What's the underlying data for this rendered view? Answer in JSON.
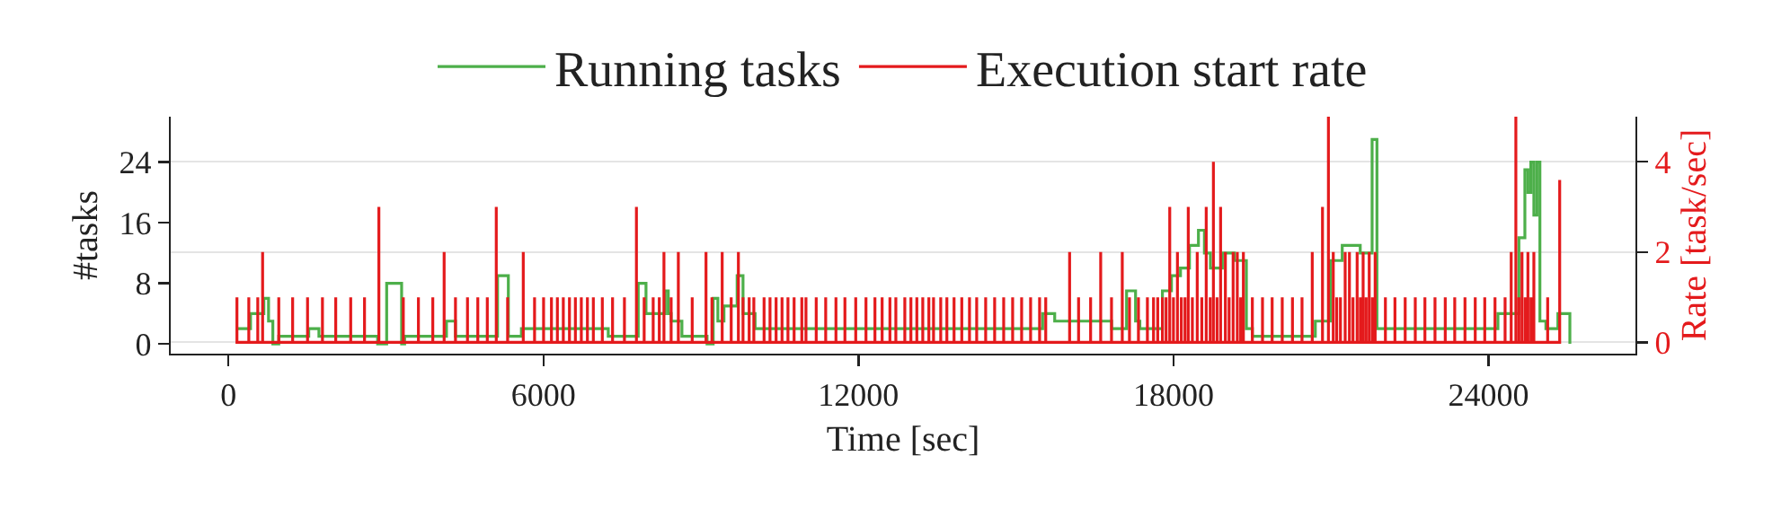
{
  "chart_data": {
    "type": "line",
    "xlabel": "Time [sec]",
    "ylabel": "#tasks",
    "y2label": "Rate [task/sec]",
    "xlim": [
      -1100,
      26800
    ],
    "xticks": [
      0,
      6000,
      12000,
      18000,
      24000
    ],
    "ylim": [
      -1.3,
      30
    ],
    "yticks": [
      0,
      8,
      16,
      24
    ],
    "y2lim": [
      -0.25,
      5.0
    ],
    "y2ticks": [
      0,
      2,
      4
    ],
    "grid": "y2",
    "legend": "top",
    "marker": "none",
    "line_style": "solid",
    "series": [
      {
        "name": "Running tasks",
        "type": "step",
        "color": "#4daf4a",
        "x": [
          160,
          420,
          674,
          763,
          845,
          958,
          1529,
          1723,
          2841,
          3013,
          3298,
          3355,
          4152,
          4324,
          5125,
          5331,
          5580,
          7234,
          7805,
          7953,
          8319,
          8377,
          8432,
          8637,
          9116,
          9233,
          9322,
          9438,
          9689,
          9801,
          10031,
          15508,
          15738,
          16822,
          17107,
          17278,
          17360,
          17790,
          17962,
          18134,
          18305,
          18476,
          18590,
          18704,
          18932,
          19161,
          19389,
          19503,
          20702,
          20987,
          21215,
          21558,
          21784,
          21876,
          24180,
          24580,
          24694,
          24752,
          24808,
          24865,
          24923,
          24980,
          25094,
          25323,
          25551
        ],
        "values": [
          2,
          4,
          6,
          3,
          0,
          1,
          2,
          1,
          0,
          8,
          0,
          1,
          3,
          1,
          9,
          1,
          2,
          1,
          8,
          4,
          7,
          4,
          3,
          1,
          0,
          6,
          3,
          5,
          9,
          4,
          2,
          4,
          3,
          2,
          7,
          3,
          2,
          7,
          9,
          10,
          13,
          15,
          12,
          10,
          12,
          11,
          2,
          1,
          3,
          11,
          13,
          12,
          27,
          2,
          4,
          14,
          23,
          20,
          24,
          17,
          24,
          3,
          2,
          4,
          0
        ]
      },
      {
        "name": "Execution start rate",
        "color": "#e41a1c",
        "axis": "y2",
        "x": [
          161,
          161,
          161,
          387,
          387,
          387,
          558,
          558,
          558,
          650,
          650,
          650,
          958,
          958,
          958,
          1222,
          1222,
          1222,
          1506,
          1506,
          1506,
          1790,
          1790,
          1790,
          2043,
          2043,
          2043,
          2328,
          2328,
          2328,
          2591,
          2591,
          2591,
          2865,
          2865,
          2865,
          3330,
          3330,
          3330,
          3618,
          3618,
          3618,
          3892,
          3892,
          3892,
          4108,
          4108,
          4108,
          4324,
          4324,
          4324,
          4553,
          4553,
          4553,
          4749,
          4749,
          4749,
          4930,
          4930,
          4930,
          5101,
          5101,
          5101,
          5317,
          5317,
          5317,
          5615,
          5615,
          5615,
          5830,
          5830,
          5830,
          6002,
          6002,
          6002,
          6152,
          6152,
          6152,
          6265,
          6265,
          6265,
          6378,
          6378,
          6378,
          6495,
          6495,
          6495,
          6608,
          6608,
          6608,
          6721,
          6721,
          6721,
          6837,
          6837,
          6837,
          6950,
          6950,
          6950,
          7121,
          7121,
          7121,
          7316,
          7316,
          7316,
          7542,
          7542,
          7542,
          7771,
          7771,
          7771,
          7918,
          7918,
          7918,
          8090,
          8090,
          8090,
          8206,
          8206,
          8206,
          8295,
          8295,
          8295,
          8432,
          8432,
          8432,
          8569,
          8569,
          8569,
          8833,
          8833,
          8833,
          9096,
          9096,
          9096,
          9209,
          9209,
          9209,
          9404,
          9404,
          9404,
          9576,
          9576,
          9576,
          9713,
          9713,
          9713,
          9801,
          9801,
          9801,
          9918,
          9918,
          9918,
          10007,
          10007,
          10007,
          10202,
          10202,
          10202,
          10315,
          10315,
          10315,
          10431,
          10431,
          10431,
          10544,
          10544,
          10544,
          10657,
          10657,
          10657,
          10774,
          10774,
          10774,
          10921,
          10921,
          10921,
          11000,
          11000,
          11000,
          11195,
          11195,
          11195,
          11376,
          11376,
          11376,
          11571,
          11571,
          11571,
          11742,
          11742,
          11742,
          11948,
          11948,
          11948,
          12143,
          12143,
          12143,
          12314,
          12314,
          12314,
          12451,
          12451,
          12451,
          12599,
          12599,
          12599,
          12712,
          12712,
          12712,
          12883,
          12883,
          12883,
          12999,
          12999,
          12999,
          13112,
          13112,
          13112,
          13225,
          13225,
          13225,
          13341,
          13341,
          13341,
          13430,
          13430,
          13430,
          13567,
          13567,
          13567,
          13684,
          13684,
          13684,
          13821,
          13821,
          13821,
          13968,
          13968,
          13968,
          14115,
          14115,
          14115,
          14252,
          14252,
          14252,
          14423,
          14423,
          14423,
          14594,
          14594,
          14594,
          14766,
          14766,
          14766,
          14937,
          14937,
          14937,
          15108,
          15108,
          15108,
          15279,
          15279,
          15279,
          15450,
          15450,
          15450,
          15567,
          15567,
          15567,
          16022,
          16022,
          16022,
          16193,
          16193,
          16193,
          16422,
          16422,
          16422,
          16614,
          16614,
          16614,
          16820,
          16820,
          16820,
          17025,
          17025,
          17025,
          17162,
          17162,
          17162,
          17333,
          17333,
          17333,
          17504,
          17504,
          17504,
          17620,
          17620,
          17620,
          17700,
          17700,
          17700,
          17790,
          17790,
          17790,
          17860,
          17860,
          17860,
          17929,
          17929,
          17929,
          18000,
          18000,
          18000,
          18076,
          18076,
          18076,
          18150,
          18150,
          18150,
          18220,
          18220,
          18220,
          18282,
          18282,
          18282,
          18360,
          18360,
          18360,
          18453,
          18453,
          18453,
          18540,
          18540,
          18540,
          18624,
          18624,
          18624,
          18700,
          18700,
          18700,
          18761,
          18761,
          18761,
          18830,
          18830,
          18830,
          18898,
          18898,
          18898,
          18989,
          18989,
          18989,
          19060,
          19060,
          19060,
          19137,
          19137,
          19137,
          19216,
          19216,
          19216,
          19280,
          19280,
          19280,
          19332,
          19332,
          19332,
          19503,
          19503,
          19503,
          19696,
          19696,
          19696,
          19880,
          19880,
          19880,
          20072,
          20072,
          20072,
          20267,
          20267,
          20267,
          20449,
          20449,
          20449,
          20644,
          20644,
          20644,
          20839,
          20839,
          20839,
          20952,
          20952,
          20952,
          21044,
          21044,
          21044,
          21110,
          21110,
          21110,
          21181,
          21181,
          21181,
          21271,
          21271,
          21271,
          21352,
          21352,
          21352,
          21420,
          21420,
          21420,
          21499,
          21499,
          21499,
          21560,
          21560,
          21560,
          21613,
          21613,
          21613,
          21670,
          21670,
          21670,
          21729,
          21729,
          21729,
          21790,
          21790,
          21790,
          21842,
          21842,
          21842,
          22037,
          22037,
          22037,
          22219,
          22219,
          22219,
          22414,
          22414,
          22414,
          22606,
          22606,
          22606,
          22790,
          22790,
          22790,
          22982,
          22982,
          22982,
          23177,
          23177,
          23177,
          23358,
          23358,
          23358,
          23553,
          23553,
          23553,
          23748,
          23748,
          23748,
          23930,
          23930,
          23930,
          24125,
          24125,
          24125,
          24317,
          24317,
          24317,
          24433,
          24433,
          24433,
          24522,
          24522,
          24522,
          24580,
          24580,
          24580,
          24639,
          24639,
          24639,
          24700,
          24700,
          24700,
          24752,
          24752,
          24752,
          24810,
          24810,
          24810,
          24865,
          24865,
          24865,
          25128,
          25128,
          25128,
          25357,
          25357,
          25357
        ],
        "values": [
          0,
          1,
          0,
          0,
          1,
          0,
          0,
          1,
          0,
          0,
          2,
          0,
          0,
          1,
          0,
          0,
          1,
          0,
          0,
          1,
          0,
          0,
          1,
          0,
          0,
          1,
          0,
          0,
          1,
          0,
          0,
          1,
          0,
          0,
          3,
          0,
          0,
          1,
          0,
          0,
          1,
          0,
          0,
          1,
          0,
          0,
          2,
          0,
          0,
          1,
          0,
          0,
          1,
          0,
          0,
          1,
          0,
          0,
          1,
          0,
          0,
          3,
          0,
          0,
          1,
          0,
          0,
          2,
          0,
          0,
          1,
          0,
          0,
          1,
          0,
          0,
          1,
          0,
          0,
          1,
          0,
          0,
          1,
          0,
          0,
          1,
          0,
          0,
          1,
          0,
          0,
          1,
          0,
          0,
          1,
          0,
          0,
          1,
          0,
          0,
          1,
          0,
          0,
          1,
          0,
          0,
          1,
          0,
          0,
          3,
          0,
          0,
          1,
          0,
          0,
          1,
          0,
          0,
          1,
          0,
          0,
          2,
          0,
          0,
          1,
          0,
          0,
          2,
          0,
          0,
          1,
          0,
          0,
          2,
          0,
          0,
          1,
          0,
          0,
          2,
          0,
          0,
          1,
          0,
          0,
          2,
          0,
          0,
          1,
          0,
          0,
          1,
          0,
          0,
          1,
          0,
          0,
          1,
          0,
          0,
          1,
          0,
          0,
          1,
          0,
          0,
          1,
          0,
          0,
          1,
          0,
          0,
          1,
          0,
          0,
          1,
          0,
          0,
          1,
          0,
          0,
          1,
          0,
          0,
          1,
          0,
          0,
          1,
          0,
          0,
          1,
          0,
          0,
          1,
          0,
          0,
          1,
          0,
          0,
          1,
          0,
          0,
          1,
          0,
          0,
          1,
          0,
          0,
          1,
          0,
          0,
          1,
          0,
          0,
          1,
          0,
          0,
          1,
          0,
          0,
          1,
          0,
          0,
          1,
          0,
          0,
          1,
          0,
          0,
          1,
          0,
          0,
          1,
          0,
          0,
          1,
          0,
          0,
          1,
          0,
          0,
          1,
          0,
          0,
          1,
          0,
          0,
          1,
          0,
          0,
          1,
          0,
          0,
          1,
          0,
          0,
          1,
          0,
          0,
          1,
          0,
          0,
          1,
          0,
          0,
          1,
          0,
          0,
          1,
          0,
          0,
          2,
          0,
          0,
          1,
          0,
          0,
          1,
          0,
          0,
          2,
          0,
          0,
          1,
          0,
          0,
          2,
          0,
          0,
          1,
          0,
          0,
          1,
          0,
          0,
          1,
          0,
          0,
          1,
          0,
          0,
          1,
          0,
          0,
          1,
          0,
          0,
          1,
          0,
          0,
          3,
          0,
          0,
          1,
          0,
          0,
          2,
          0,
          0,
          1,
          0,
          0,
          1,
          0,
          0,
          3,
          0,
          0,
          1,
          0,
          0,
          2,
          0,
          0,
          1,
          0,
          0,
          3,
          0,
          0,
          1,
          0,
          0,
          4,
          0,
          0,
          1,
          0,
          0,
          3,
          0,
          0,
          2,
          0,
          0,
          1,
          0,
          0,
          2,
          0,
          0,
          2,
          0,
          0,
          1,
          0,
          0,
          2,
          0,
          0,
          1,
          0,
          0,
          1,
          0,
          0,
          1,
          0,
          0,
          1,
          0,
          0,
          1,
          0,
          0,
          1,
          0,
          0,
          2,
          0,
          0,
          3,
          0,
          0,
          5,
          0,
          0,
          2,
          0,
          0,
          1,
          0,
          0,
          1,
          0,
          0,
          2,
          0,
          0,
          2,
          0,
          0,
          1,
          0,
          0,
          2,
          0,
          0,
          1,
          0,
          0,
          2,
          0,
          0,
          1,
          0,
          0,
          2,
          0,
          0,
          1,
          0,
          0,
          2,
          0,
          0,
          1,
          0,
          0,
          1,
          0,
          0,
          1,
          0,
          0,
          1,
          0,
          0,
          1,
          0,
          0,
          1,
          0,
          0,
          1,
          0,
          0,
          1,
          0,
          0,
          1,
          0,
          0,
          1,
          0,
          0,
          1,
          0,
          0,
          1,
          0,
          0,
          1,
          0,
          0,
          2,
          0,
          0,
          5,
          0,
          0,
          1,
          0,
          0,
          2,
          0,
          0,
          1,
          0,
          0,
          2,
          0,
          0,
          1,
          0,
          0,
          2,
          0,
          0,
          1,
          0,
          0,
          3.6,
          0
        ]
      }
    ]
  }
}
